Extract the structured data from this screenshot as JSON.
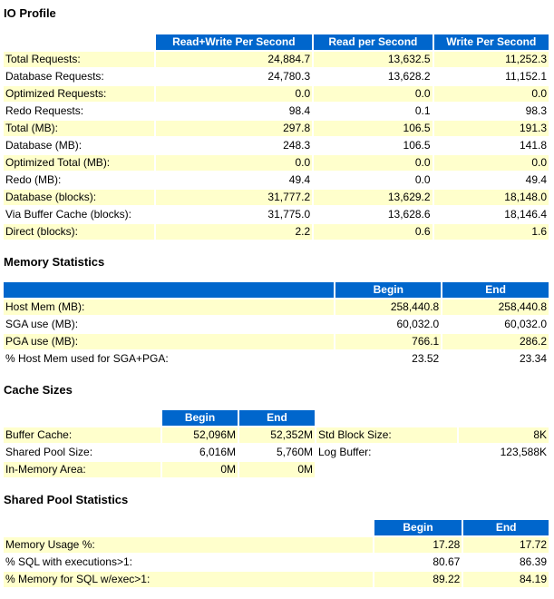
{
  "io_profile": {
    "title": "IO Profile",
    "headers": [
      "Read+Write Per Second",
      "Read per Second",
      "Write Per Second"
    ],
    "rows": [
      {
        "label": "Total Requests:",
        "rw": "24,884.7",
        "read": "13,632.5",
        "write": "11,252.3"
      },
      {
        "label": "Database Requests:",
        "rw": "24,780.3",
        "read": "13,628.2",
        "write": "11,152.1"
      },
      {
        "label": "Optimized Requests:",
        "rw": "0.0",
        "read": "0.0",
        "write": "0.0"
      },
      {
        "label": "Redo Requests:",
        "rw": "98.4",
        "read": "0.1",
        "write": "98.3"
      },
      {
        "label": "Total (MB):",
        "rw": "297.8",
        "read": "106.5",
        "write": "191.3"
      },
      {
        "label": "Database (MB):",
        "rw": "248.3",
        "read": "106.5",
        "write": "141.8"
      },
      {
        "label": "Optimized Total (MB):",
        "rw": "0.0",
        "read": "0.0",
        "write": "0.0"
      },
      {
        "label": "Redo (MB):",
        "rw": "49.4",
        "read": "0.0",
        "write": "49.4"
      },
      {
        "label": "Database (blocks):",
        "rw": "31,777.2",
        "read": "13,629.2",
        "write": "18,148.0"
      },
      {
        "label": "Via Buffer Cache (blocks):",
        "rw": "31,775.0",
        "read": "13,628.6",
        "write": "18,146.4"
      },
      {
        "label": "Direct (blocks):",
        "rw": "2.2",
        "read": "0.6",
        "write": "1.6"
      }
    ]
  },
  "memory_statistics": {
    "title": "Memory Statistics",
    "headers": [
      "Begin",
      "End"
    ],
    "rows": [
      {
        "label": "Host Mem (MB):",
        "begin": "258,440.8",
        "end": "258,440.8"
      },
      {
        "label": "SGA use (MB):",
        "begin": "60,032.0",
        "end": "60,032.0"
      },
      {
        "label": "PGA use (MB):",
        "begin": "766.1",
        "end": "286.2"
      },
      {
        "label": "% Host Mem used for SGA+PGA:",
        "begin": "23.52",
        "end": "23.34"
      }
    ]
  },
  "cache_sizes": {
    "title": "Cache Sizes",
    "headers": [
      "Begin",
      "End"
    ],
    "rows": [
      {
        "label": "Buffer Cache:",
        "begin": "52,096M",
        "end": "52,352M",
        "label2": "Std Block Size:",
        "value2": "8K"
      },
      {
        "label": "Shared Pool Size:",
        "begin": "6,016M",
        "end": "5,760M",
        "label2": "Log Buffer:",
        "value2": "123,588K"
      },
      {
        "label": "In-Memory Area:",
        "begin": "0M",
        "end": "0M",
        "label2": "",
        "value2": ""
      }
    ]
  },
  "shared_pool_statistics": {
    "title": "Shared Pool Statistics",
    "headers": [
      "Begin",
      "End"
    ],
    "rows": [
      {
        "label": "Memory Usage %:",
        "begin": "17.28",
        "end": "17.72"
      },
      {
        "label": "% SQL with executions>1:",
        "begin": "80.67",
        "end": "86.39"
      },
      {
        "label": "% Memory for SQL w/exec>1:",
        "begin": "89.22",
        "end": "84.19"
      }
    ]
  },
  "colors": {
    "header_bg": "#0066cc",
    "header_text": "#ffffff",
    "row_highlight": "#ffffcc",
    "row_plain": "#ffffff"
  }
}
